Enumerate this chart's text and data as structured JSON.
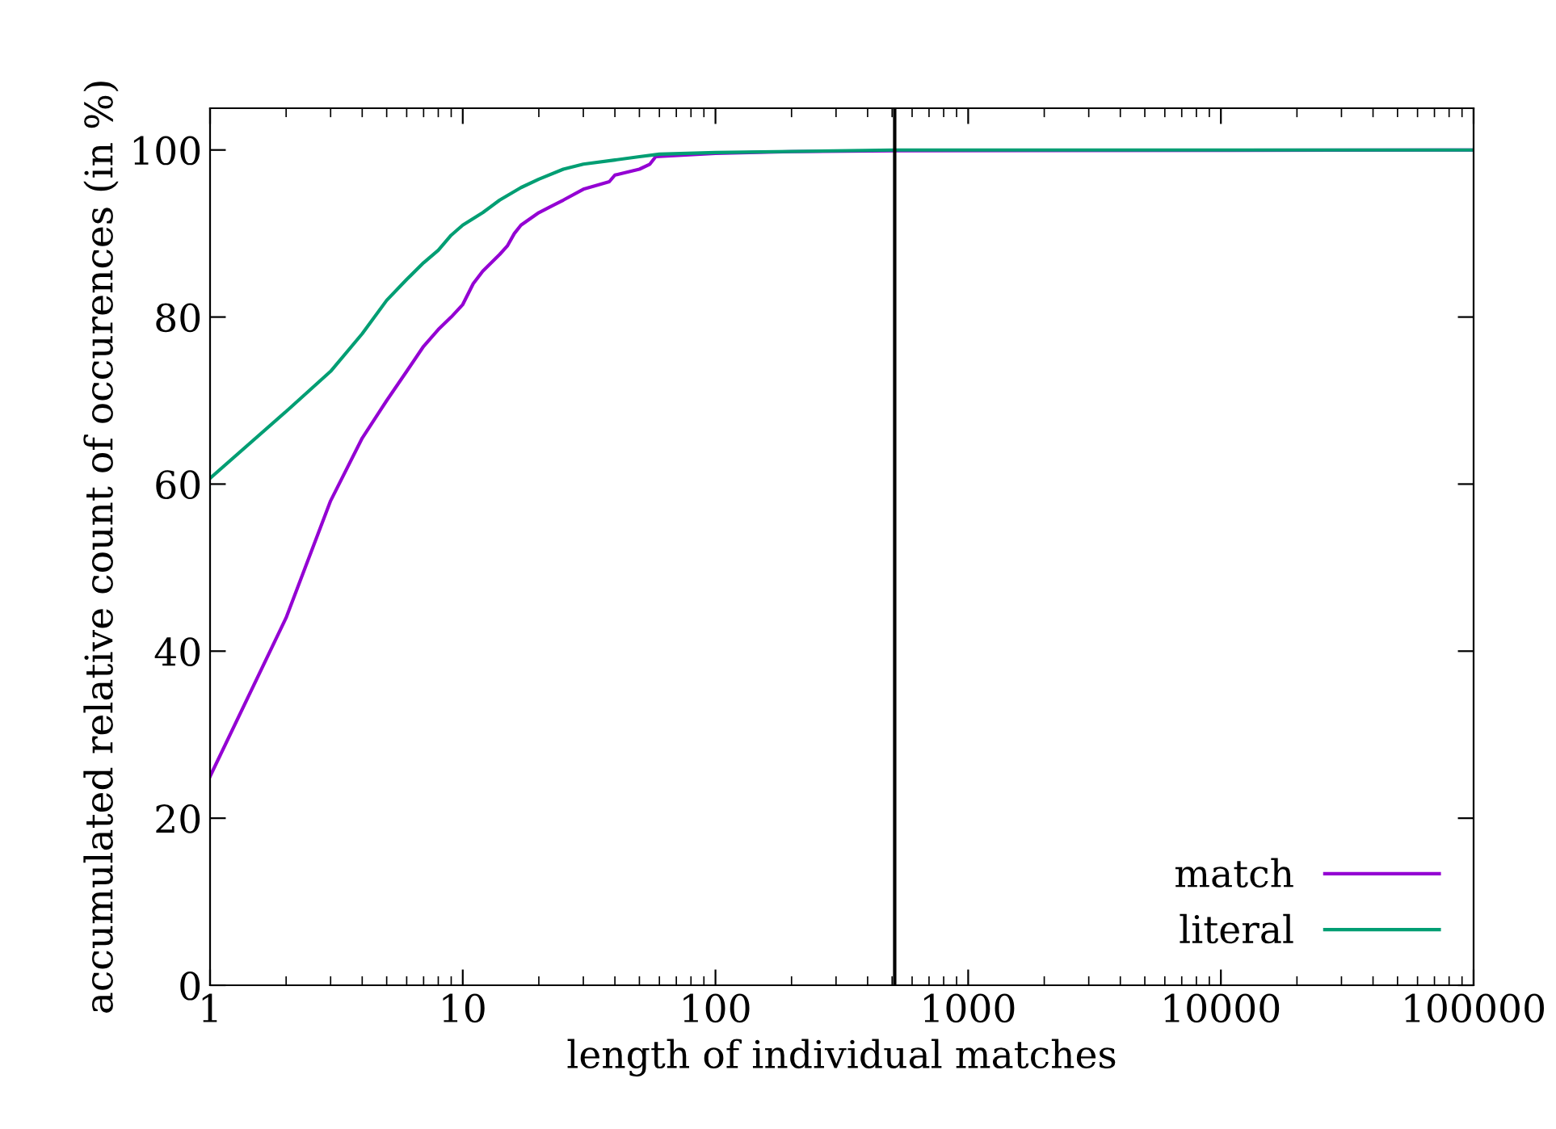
{
  "chart_data": {
    "type": "line",
    "xlabel": "length of individual matches",
    "ylabel": "accumulated relative count of occurences (in %)",
    "log": "x",
    "xlim": [
      1,
      100000
    ],
    "xticks": [
      1,
      10,
      100,
      1000,
      10000,
      100000
    ],
    "ylim": [
      0,
      105
    ],
    "yticks": [
      0,
      20,
      40,
      60,
      80,
      100
    ],
    "grid": false,
    "legend": "bottom right",
    "marker": "none",
    "line_style": "solid",
    "ref_lines": [
      {
        "axis": "x",
        "value": 512,
        "color": "#000000"
      }
    ],
    "series": [
      {
        "name": "match",
        "color": "#9400d3",
        "x": [
          1,
          2,
          3,
          4,
          5,
          6,
          7,
          8,
          9,
          10,
          11,
          12,
          14,
          15,
          16,
          17,
          20,
          25,
          30,
          38,
          40,
          50,
          55,
          58,
          100,
          200,
          512,
          100000
        ],
        "values": [
          25,
          44,
          58,
          65.5,
          70,
          73.5,
          76.5,
          78.5,
          80,
          81.5,
          84,
          85.5,
          87.5,
          88.5,
          90,
          91,
          92.5,
          94,
          95.3,
          96.2,
          97,
          97.7,
          98.3,
          99.2,
          99.6,
          99.8,
          99.9,
          100
        ]
      },
      {
        "name": "literal",
        "color": "#009e73",
        "x": [
          1,
          2,
          3,
          4,
          5,
          6,
          7,
          8,
          9,
          10,
          12,
          14,
          17,
          20,
          25,
          30,
          40,
          50,
          60,
          100,
          300,
          512,
          100000
        ],
        "values": [
          60.7,
          68.7,
          73.5,
          78,
          82,
          84.5,
          86.5,
          88,
          89.8,
          91,
          92.5,
          94,
          95.5,
          96.5,
          97.7,
          98.3,
          98.8,
          99.2,
          99.5,
          99.7,
          99.9,
          100,
          100
        ]
      }
    ]
  }
}
